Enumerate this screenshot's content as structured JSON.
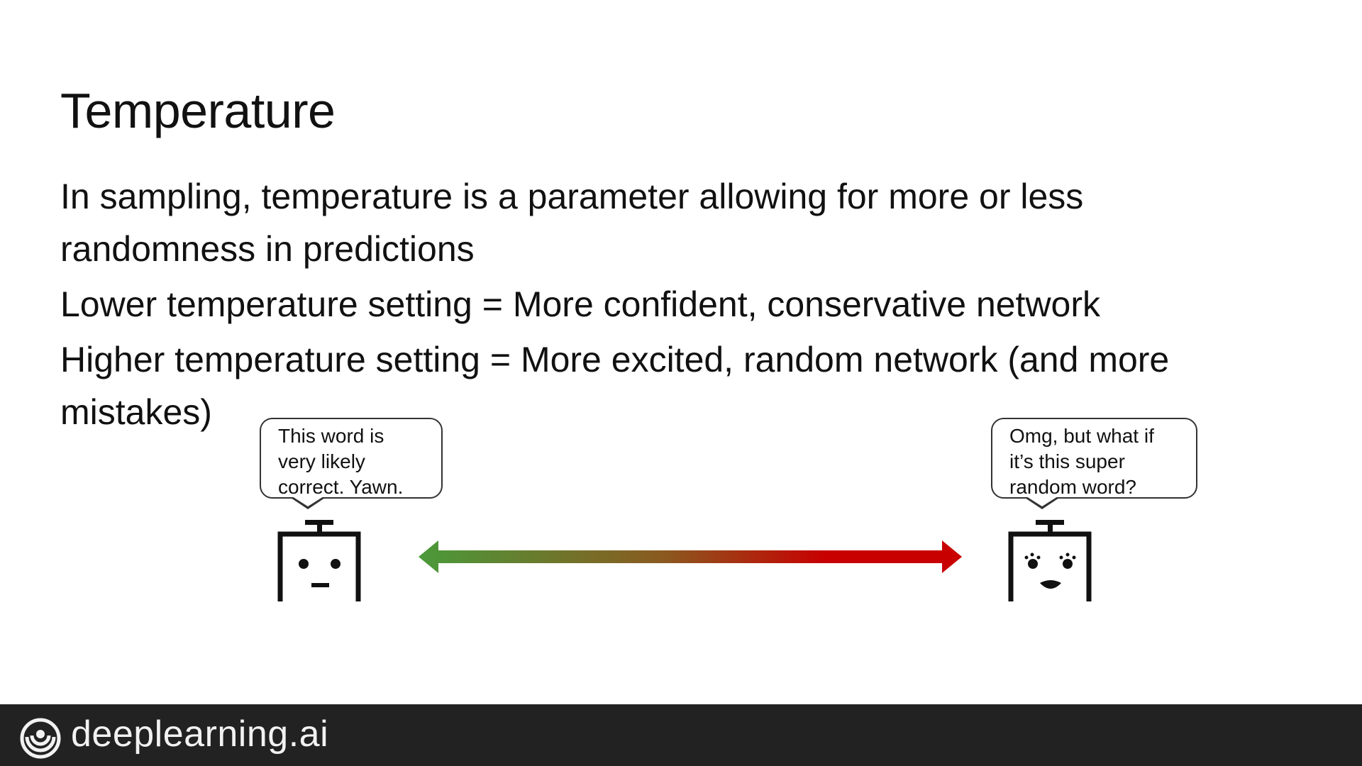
{
  "slide": {
    "title": "Temperature",
    "bullets": [
      "In sampling, temperature is a parameter allowing for more or less randomness in predictions",
      "Lower temperature setting = More confident, conservative network",
      "Higher temperature setting = More excited, random network (and more mistakes)"
    ]
  },
  "illustration": {
    "calm_bubble": [
      "This word is",
      "very likely",
      "correct. Yawn."
    ],
    "excited_bubble": [
      "Omg, but what if",
      "it’s this super",
      "random word?"
    ],
    "arrow_colors": {
      "low": "#4a9a3a",
      "mid": "#8a5a20",
      "high": "#c80000"
    }
  },
  "footer": {
    "brand": "deeplearning.ai",
    "logo_icon": "deeplearning-logo-icon",
    "background": "#222222"
  }
}
